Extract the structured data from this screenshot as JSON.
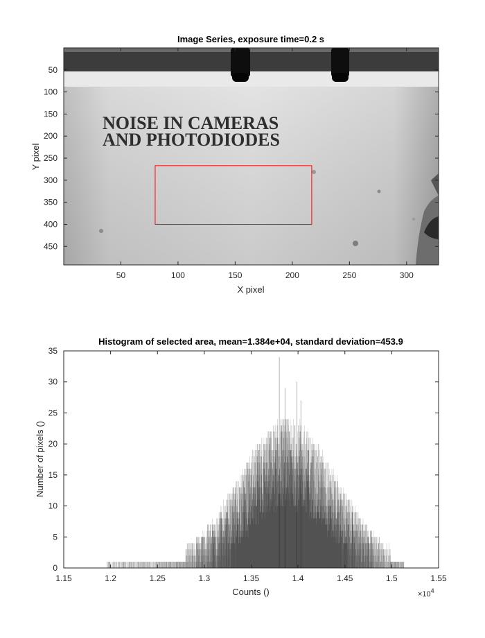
{
  "chart_data": [
    {
      "type": "image",
      "title": "Image Series, exposure time=0.2 s",
      "xlabel": "X pixel",
      "ylabel": "Y pixel",
      "xlim": [
        0,
        328
      ],
      "ylim": [
        0,
        492
      ],
      "y_reversed": true,
      "xticks": [
        50,
        100,
        150,
        200,
        250,
        300
      ],
      "yticks": [
        50,
        100,
        150,
        200,
        250,
        300,
        350,
        400,
        450
      ],
      "colormap": "gray",
      "image_text": [
        "NOISE IN CAMERAS",
        "AND PHOTODIODES"
      ],
      "selection_rectangle": {
        "x_range": [
          80,
          217
        ],
        "y_range": [
          267,
          400
        ],
        "color": "#ff0000"
      }
    },
    {
      "type": "bar",
      "title": "Histogram of selected area, mean=1.384e+04, standard deviation=453.9",
      "xlabel": "Counts ()",
      "ylabel": "Number of pixels ()",
      "xlim": [
        11500,
        15500
      ],
      "ylim": [
        0,
        35
      ],
      "xticks": [
        1.15,
        1.2,
        1.25,
        1.3,
        1.35,
        1.4,
        1.45,
        1.5,
        1.55
      ],
      "x_exponent_label": "×10",
      "x_exponent_power": "4",
      "yticks": [
        0,
        5,
        10,
        15,
        20,
        25,
        30,
        35
      ],
      "mean": 13840,
      "std": 453.9,
      "x_min": 11960,
      "x_max": 15130,
      "peak_count": 34,
      "bar_color": "#000000"
    }
  ]
}
